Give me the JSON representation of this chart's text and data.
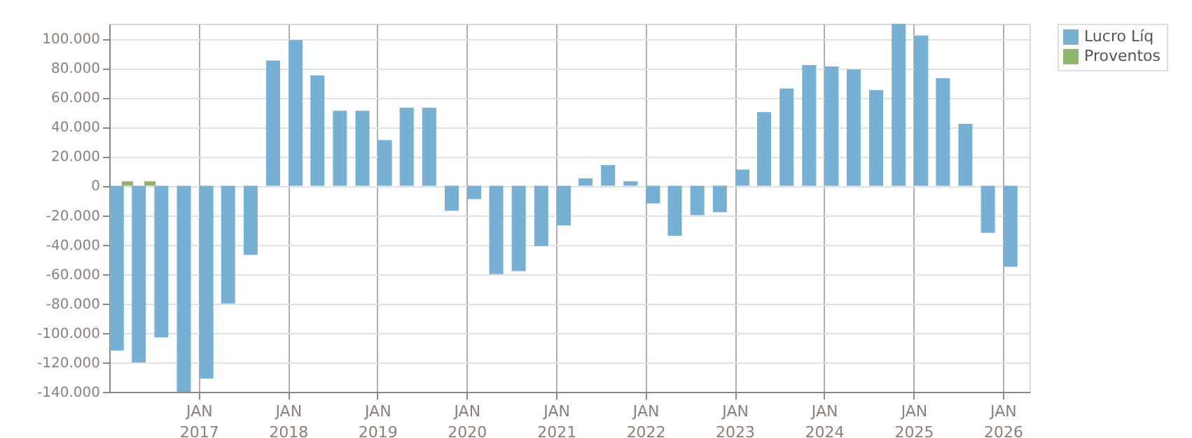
{
  "chart_data": {
    "type": "bar",
    "x": [
      "2016-02-01",
      "2016-05-01",
      "2016-08-01",
      "2016-11-01",
      "2017-02-01",
      "2017-05-01",
      "2017-08-01",
      "2017-11-01",
      "2018-02-01",
      "2018-05-01",
      "2018-08-01",
      "2018-11-01",
      "2019-02-01",
      "2019-05-01",
      "2019-08-01",
      "2019-11-01",
      "2020-02-01",
      "2020-05-01",
      "2020-08-01",
      "2020-11-01",
      "2021-02-01",
      "2021-05-01",
      "2021-08-01",
      "2021-11-01",
      "2022-02-01",
      "2022-05-01",
      "2022-08-01",
      "2022-11-01",
      "2023-02-01",
      "2023-05-01",
      "2023-08-01",
      "2023-11-01",
      "2024-02-01",
      "2024-05-01",
      "2024-08-01",
      "2024-11-01",
      "2025-02-01",
      "2025-05-01",
      "2025-08-01",
      "2025-11-01",
      "2026-02-01"
    ],
    "series": [
      {
        "name": "Lucro Líq",
        "color": "#76b0d4",
        "values": [
          -112000,
          -120000,
          -103000,
          -140000,
          -131000,
          -80000,
          -47000,
          85000,
          99000,
          75000,
          51000,
          51000,
          31000,
          53000,
          53000,
          -17000,
          -9000,
          -60000,
          -58000,
          -41000,
          -27000,
          5000,
          14000,
          3000,
          -12000,
          -34000,
          -20000,
          -18000,
          11000,
          50000,
          66000,
          82000,
          81000,
          79000,
          65000,
          110000,
          102000,
          73000,
          42000,
          -32000,
          -55000
        ]
      },
      {
        "name": "Proventos",
        "color": "#8db56b",
        "x": [
          "2016-03-15",
          "2016-06-15"
        ],
        "values": [
          3000,
          3000
        ]
      }
    ],
    "xlim": [
      "2016-01-01",
      "2026-04-20"
    ],
    "xticks": [
      {
        "value": "2017-01-01",
        "label": "JAN 2017"
      },
      {
        "value": "2018-01-01",
        "label": "JAN 2018"
      },
      {
        "value": "2019-01-01",
        "label": "JAN 2019"
      },
      {
        "value": "2020-01-01",
        "label": "JAN 2020"
      },
      {
        "value": "2021-01-01",
        "label": "JAN 2021"
      },
      {
        "value": "2022-01-01",
        "label": "JAN 2022"
      },
      {
        "value": "2023-01-01",
        "label": "JAN 2023"
      },
      {
        "value": "2024-01-01",
        "label": "JAN 2024"
      },
      {
        "value": "2025-01-01",
        "label": "JAN 2025"
      },
      {
        "value": "2026-01-01",
        "label": "JAN 2026"
      }
    ],
    "ylim": [
      -140000,
      110000
    ],
    "yticks": [
      {
        "value": -140000,
        "label": "-140.000"
      },
      {
        "value": -120000,
        "label": "-120.000"
      },
      {
        "value": -100000,
        "label": "-100.000"
      },
      {
        "value": -80000,
        "label": "-80.000"
      },
      {
        "value": -60000,
        "label": "-60.000"
      },
      {
        "value": -40000,
        "label": "-40.000"
      },
      {
        "value": -20000,
        "label": "-20.000"
      },
      0,
      {
        "value": 20000,
        "label": "20.000"
      },
      {
        "value": 40000,
        "label": "40.000"
      },
      {
        "value": 60000,
        "label": "60.000"
      },
      {
        "value": 80000,
        "label": "80.000"
      },
      {
        "value": 100000,
        "label": "100.000"
      }
    ],
    "grid": true,
    "legend": "top right"
  }
}
